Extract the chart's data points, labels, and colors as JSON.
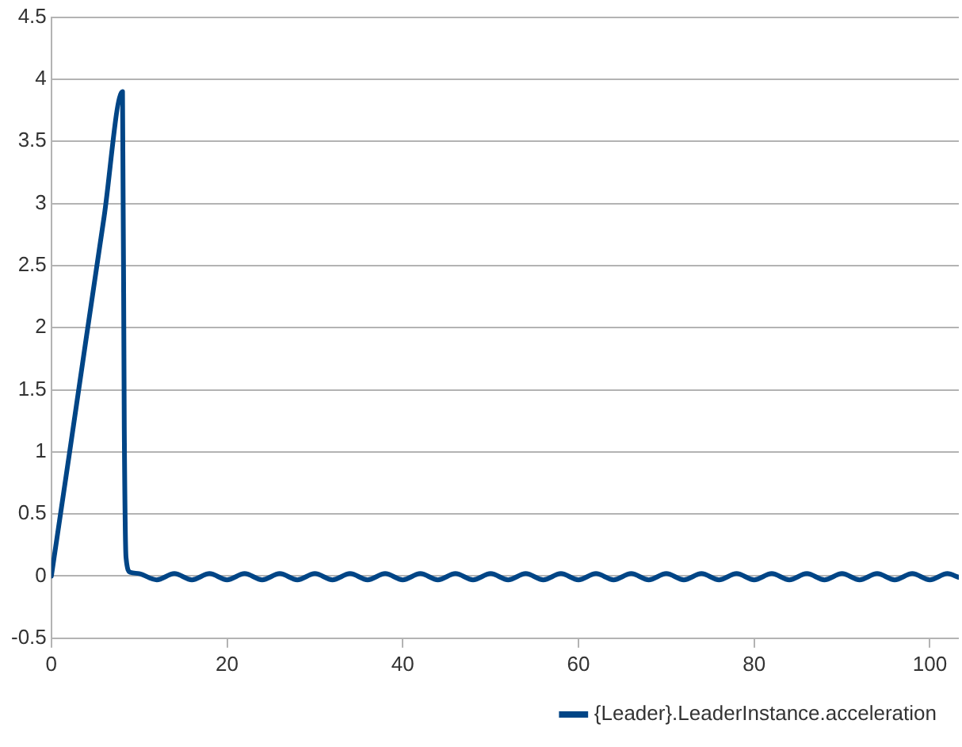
{
  "chart_data": {
    "type": "line",
    "x": [
      0,
      2,
      4,
      6,
      8.1,
      8.3,
      8.5,
      9,
      10,
      12,
      14,
      16,
      18,
      20,
      22,
      24,
      26,
      28,
      30,
      32,
      34,
      36,
      38,
      40,
      42,
      44,
      46,
      48,
      50,
      52,
      54,
      56,
      58,
      60,
      62,
      64,
      66,
      68,
      70,
      72,
      74,
      76,
      78,
      80,
      82,
      84,
      86,
      88,
      90,
      92,
      94,
      96,
      98,
      100,
      102,
      103.3
    ],
    "series": [
      {
        "name": "{Leader}.LeaderInstance.acceleration",
        "color": "#004586",
        "values": [
          0,
          0.96,
          1.93,
          2.89,
          3.9,
          1.2,
          0.15,
          0.03,
          0.02,
          -0.03,
          0.02,
          -0.03,
          0.02,
          -0.03,
          0.02,
          -0.03,
          0.02,
          -0.03,
          0.02,
          -0.03,
          0.02,
          -0.03,
          0.02,
          -0.03,
          0.02,
          -0.03,
          0.02,
          -0.03,
          0.02,
          -0.03,
          0.02,
          -0.03,
          0.02,
          -0.03,
          0.02,
          -0.03,
          0.02,
          -0.03,
          0.02,
          -0.03,
          0.02,
          -0.03,
          0.02,
          -0.03,
          0.02,
          -0.03,
          0.02,
          -0.03,
          0.02,
          -0.03,
          0.02,
          -0.03,
          0.02,
          -0.03,
          0.02,
          -0.01
        ]
      }
    ],
    "xlim": [
      0,
      103.3
    ],
    "xticks": [
      0,
      20,
      40,
      60,
      80,
      100
    ],
    "ylim": [
      -0.5,
      4.5
    ],
    "yticks": [
      -0.5,
      0,
      0.5,
      1,
      1.5,
      2,
      2.5,
      3,
      3.5,
      4,
      4.5
    ],
    "grid": "y",
    "legend": "bottom",
    "marker": "none",
    "line_style": "solid"
  }
}
